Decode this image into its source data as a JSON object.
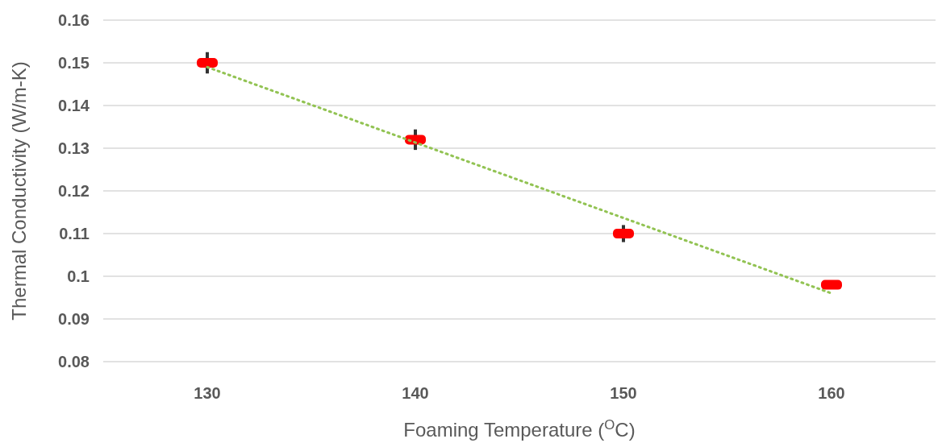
{
  "chart_data": {
    "type": "scatter",
    "xlabel": "Foaming Temperature ($^{O}$C)",
    "ylabel": "Thermal Conductivity (W/m-K)",
    "x": [
      130,
      140,
      150,
      160
    ],
    "series": [
      {
        "color": "#ff0000",
        "values": [
          0.15,
          0.132,
          0.11,
          0.098
        ],
        "errors": [
          0.0025,
          0.0024,
          0.002,
          null
        ],
        "marker": "square"
      },
      {
        "type": "line",
        "color": "#92c353",
        "x": [
          130,
          160
        ],
        "values": [
          0.149,
          0.096
        ],
        "line_style": "dotted",
        "marker": "none"
      }
    ],
    "xlim": [
      125,
      165
    ],
    "xticks": [
      130,
      140,
      150,
      160
    ],
    "ylim": [
      0.08,
      0.16
    ],
    "yticks": [
      {
        "value": 0.08,
        "label": "0.08"
      },
      {
        "value": 0.09,
        "label": "0.09"
      },
      {
        "value": 0.1,
        "label": "0.1"
      },
      {
        "value": 0.11,
        "label": "0.11"
      },
      {
        "value": 0.12,
        "label": "0.12"
      },
      {
        "value": 0.13,
        "label": "0.13"
      },
      {
        "value": 0.14,
        "label": "0.14"
      },
      {
        "value": 0.15,
        "label": "0.15"
      },
      {
        "value": 0.16,
        "label": "0.16"
      }
    ],
    "grid": "y"
  }
}
